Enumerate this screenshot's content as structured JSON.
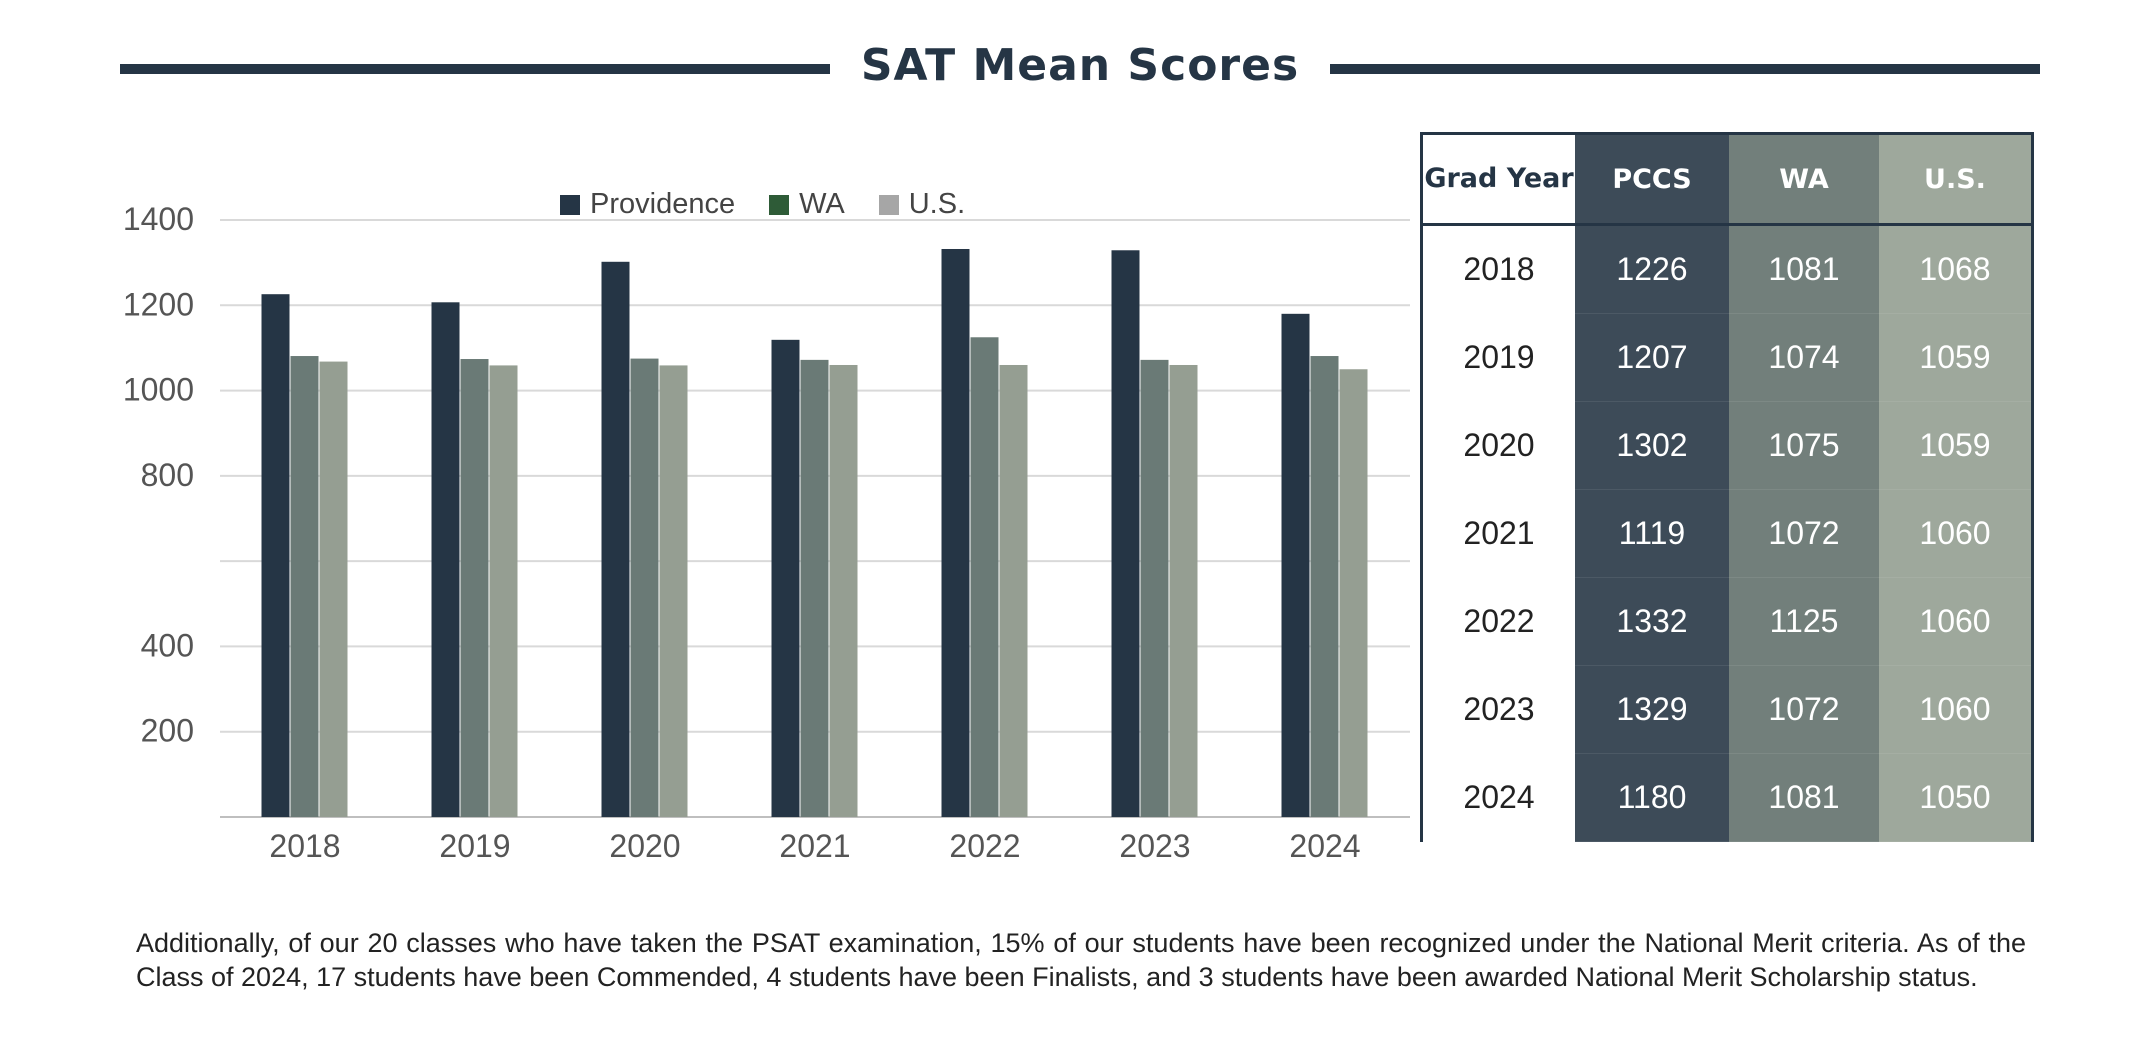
{
  "page": {
    "title": "SAT Mean Scores"
  },
  "colors": {
    "providence": "#253545",
    "wa": "#6a7a76",
    "us": "#959e92",
    "legend_wa": "#2e5b37",
    "legend_us": "#a6a6a6",
    "grid": "#d9d9d9"
  },
  "chart_data": {
    "type": "bar",
    "categories": [
      "2018",
      "2019",
      "2020",
      "2021",
      "2022",
      "2023",
      "2024"
    ],
    "series": [
      {
        "name": "Providence",
        "values": [
          1226,
          1207,
          1302,
          1119,
          1332,
          1329,
          1180
        ]
      },
      {
        "name": "WA",
        "values": [
          1081,
          1074,
          1075,
          1072,
          1125,
          1072,
          1081
        ]
      },
      {
        "name": "U.S.",
        "values": [
          1068,
          1059,
          1059,
          1060,
          1060,
          1060,
          1050
        ]
      }
    ],
    "yticks": [
      {
        "value": 1400,
        "label": "1400"
      },
      {
        "value": 1200,
        "label": "1200"
      },
      {
        "value": 1000,
        "label": "1000"
      },
      {
        "value": 800,
        "label": "800"
      },
      {
        "value": 600,
        "label": ""
      },
      {
        "value": 400,
        "label": "400"
      },
      {
        "value": 200,
        "label": "200"
      }
    ],
    "ylim": [
      0,
      1400
    ],
    "legend": {
      "position": "top"
    },
    "grid": true
  },
  "table": {
    "headers": [
      "Grad Year",
      "PCCS",
      "WA",
      "U.S."
    ],
    "rows": [
      [
        "2018",
        "1226",
        "1081",
        "1068"
      ],
      [
        "2019",
        "1207",
        "1074",
        "1059"
      ],
      [
        "2020",
        "1302",
        "1075",
        "1059"
      ],
      [
        "2021",
        "1119",
        "1072",
        "1060"
      ],
      [
        "2022",
        "1332",
        "1125",
        "1060"
      ],
      [
        "2023",
        "1329",
        "1072",
        "1060"
      ],
      [
        "2024",
        "1180",
        "1081",
        "1050"
      ]
    ]
  },
  "footnote": "Additionally, of our 20 classes who have taken the PSAT examination, 15% of our students have been recognized under the National Merit criteria.  As of the Class of 2024, 17 students have been Commended, 4 students have been Finalists, and 3 students have been awarded National Merit Scholarship status."
}
